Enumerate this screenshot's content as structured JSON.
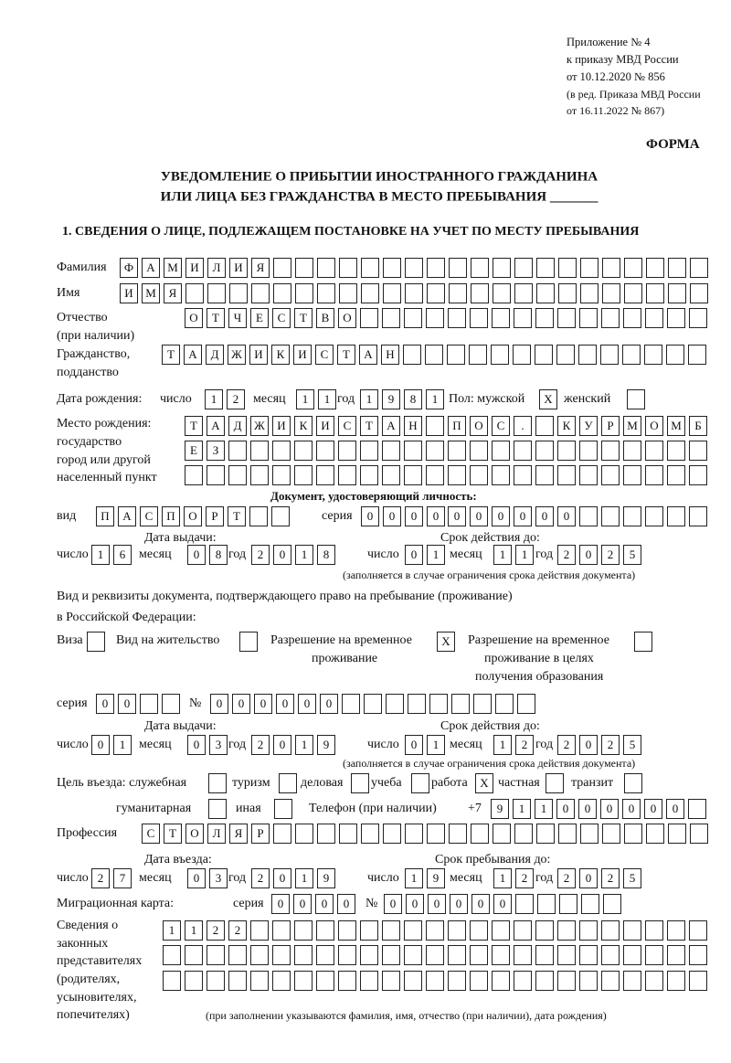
{
  "header": {
    "lines": [
      "Приложение № 4",
      "к приказу МВД России",
      "от 10.12.2020 № 856"
    ],
    "edition": [
      "(в ред. Приказа МВД России",
      "от 16.11.2022 № 867)"
    ],
    "form_label": "ФОРМА"
  },
  "title": {
    "line1": "УВЕДОМЛЕНИЕ О ПРИБЫТИИ ИНОСТРАННОГО ГРАЖДАНИНА",
    "line2": "ИЛИ ЛИЦА БЕЗ ГРАЖДАНСТВА В МЕСТО ПРЕБЫВАНИЯ _______"
  },
  "section1": {
    "title": "1. СВЕДЕНИЯ О ЛИЦЕ, ПОДЛЕЖАЩЕМ ПОСТАНОВКЕ НА УЧЕТ ПО МЕСТУ ПРЕБЫВАНИЯ",
    "labels": {
      "surname": "Фамилия",
      "name": "Имя",
      "patronymic": "Отчество",
      "patronymic_note": "(при наличии)",
      "citizenship": "Гражданство,",
      "citizenship2": "подданство",
      "birth_date": "Дата рождения:",
      "day": "число",
      "month": "месяц",
      "year": "год",
      "sex_male": "Пол: мужской",
      "sex_female": "женский",
      "birth_place": [
        "Место рождения:",
        "государство",
        "город или другой",
        "населенный пункт"
      ],
      "id_doc": "Документ, удостоверяющий личность:",
      "kind": "вид",
      "series": "серия",
      "number": "№",
      "issue_date": "Дата выдачи:",
      "valid_until": "Срок действия до:",
      "validity_note": "(заполняется в случае ограничения срока действия документа)",
      "stay_doc": "Вид и реквизиты документа, подтверждающего право на пребывание (проживание)",
      "stay_doc2": "в Российской Федерации:",
      "visa": "Виза",
      "residence_permit": "Вид на жительство",
      "temp_residence": [
        "Разрешение на временное",
        "проживание"
      ],
      "temp_residence_edu": [
        "Разрешение на временное",
        "проживание в целях",
        "получения образования"
      ],
      "purpose": "Цель въезда: служебная",
      "tourism": "туризм",
      "business": "деловая",
      "study": "учеба",
      "work": "работа",
      "private": "частная",
      "transit": "транзит",
      "humanitarian": "гуманитарная",
      "other": "иная",
      "phone": "Телефон (при наличии)",
      "phone_prefix": "+7",
      "profession": "Профессия",
      "entry_date": "Дата въезда:",
      "stay_until": "Срок пребывания до:",
      "migration_card": "Миграционная карта:",
      "representatives": [
        "Сведения о",
        "законных",
        "представителях",
        "(родителях,",
        "усыновителях,",
        "попечителях)"
      ],
      "representatives_note": "(при заполнении указываются фамилия, имя, отчество (при наличии), дата рождения)"
    },
    "values": {
      "surname": "ФАМИЛИЯ",
      "name": "ИМЯ",
      "patronymic": "ОТЧЕСТВО",
      "citizenship": "ТАДЖИКИСТАН",
      "birth_day": "12",
      "birth_month": "11",
      "birth_year": "1981",
      "sex_male": "X",
      "sex_female": "",
      "birth_place_1": "ТАДЖИКИСТАН ПОС. КУРМОМБ",
      "birth_place_2": "ЕЗ",
      "birth_place_3": "",
      "id_kind": "ПАСПОРТ",
      "id_series": "0000",
      "id_number": "000000",
      "id_issue_day": "16",
      "id_issue_month": "08",
      "id_issue_year": "2018",
      "id_valid_day": "01",
      "id_valid_month": "11",
      "id_valid_year": "2025",
      "visa": "",
      "residence_permit": "",
      "temp_residence": "X",
      "temp_residence_edu": "",
      "stay_series": "00",
      "stay_number": "000000",
      "stay_issue_day": "01",
      "stay_issue_month": "03",
      "stay_issue_year": "2019",
      "stay_valid_day": "01",
      "stay_valid_month": "12",
      "stay_valid_year": "2025",
      "purpose_official": "",
      "purpose_tourism": "",
      "purpose_business": "",
      "purpose_study": "",
      "purpose_work": "X",
      "purpose_private": "",
      "purpose_transit": "",
      "purpose_humanitarian": "",
      "purpose_other": "",
      "phone": "911000000",
      "profession": "СТОЛЯР",
      "entry_day": "27",
      "entry_month": "03",
      "entry_year": "2019",
      "stay_until_day": "19",
      "stay_until_month": "12",
      "stay_until_year": "2025",
      "mig_series": "0000",
      "mig_number": "000000",
      "representatives_1": "1122",
      "representatives_2": "",
      "representatives_3": ""
    }
  }
}
